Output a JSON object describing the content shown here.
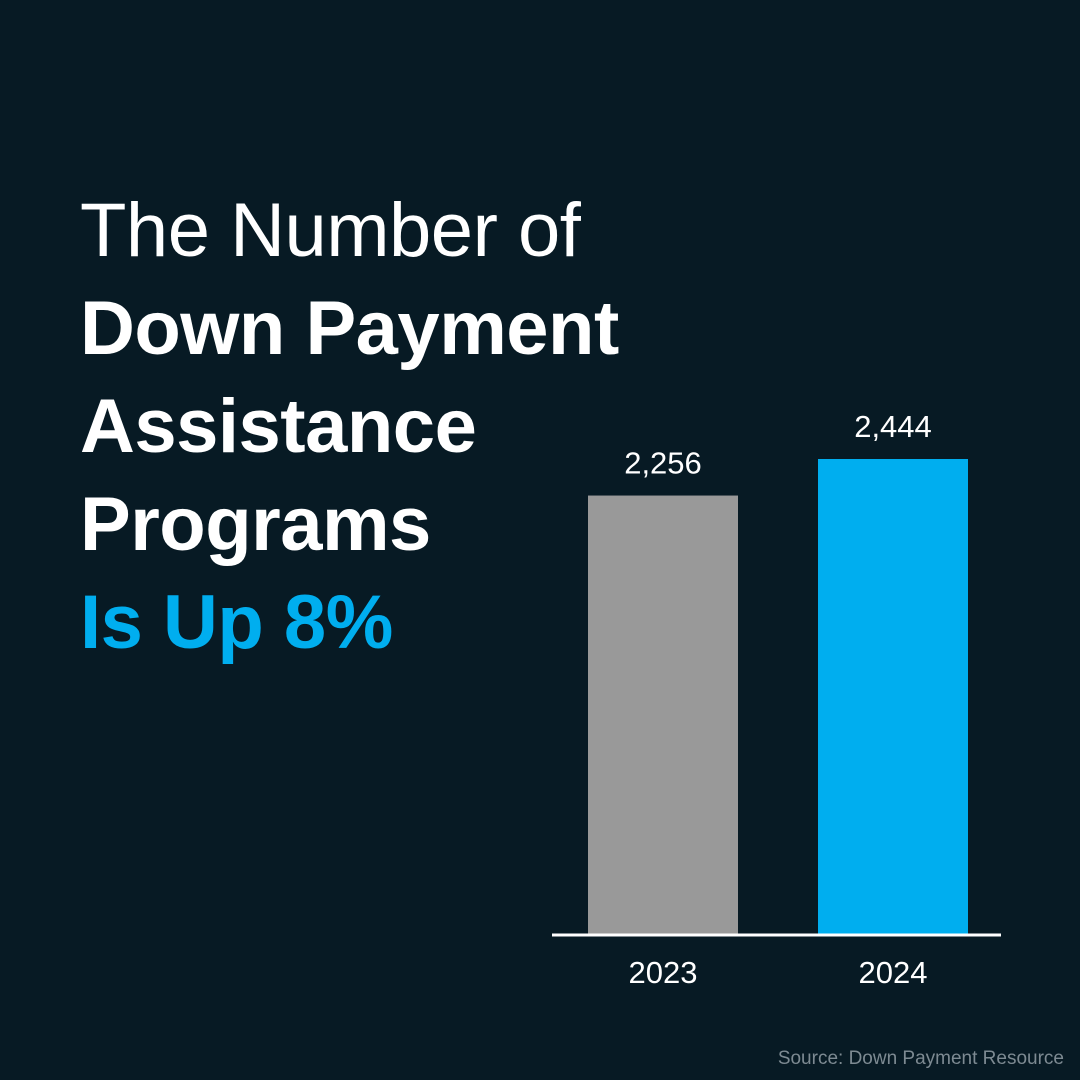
{
  "headline": {
    "line1": "The Number of",
    "line2": "Down Payment",
    "line3": "Assistance",
    "line4": "Programs",
    "line5": "Is Up 8%"
  },
  "colors": {
    "background": "#071a24",
    "text": "#ffffff",
    "accent": "#00aeef",
    "bar_2023": "#999999",
    "bar_2024": "#00aeef",
    "source_text": "#7d8a92"
  },
  "chart_data": {
    "type": "bar",
    "categories": [
      "2023",
      "2024"
    ],
    "values": [
      2256,
      2444
    ],
    "data_labels": [
      "2,256",
      "2,444"
    ],
    "bar_colors": [
      "#999999",
      "#00aeef"
    ],
    "ylim": [
      0,
      2600
    ],
    "grid": false,
    "legend": "none"
  },
  "source": "Source: Down Payment Resource"
}
